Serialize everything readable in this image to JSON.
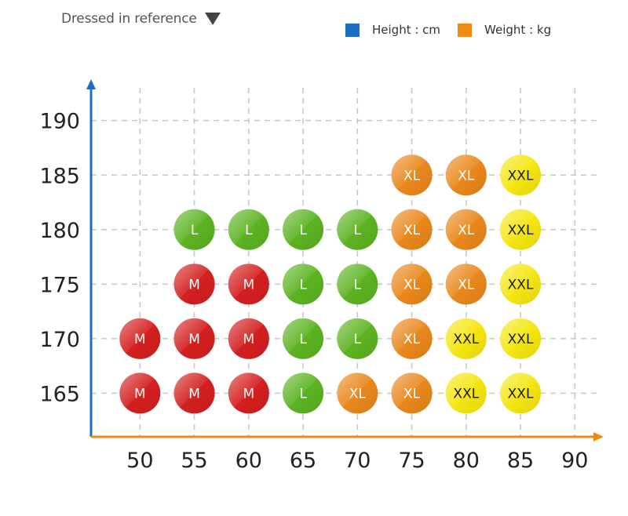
{
  "header": {
    "title": "Dressed in reference",
    "arrow_icon": "triangle-down-icon"
  },
  "legend": [
    {
      "label": "Height : cm",
      "color": "#1a6fc4"
    },
    {
      "label": "Weight : kg",
      "color": "#f08a12"
    }
  ],
  "chart_data": {
    "type": "scatter",
    "title": "Dressed in reference",
    "x_ticks": [
      50,
      55,
      60,
      65,
      70,
      75,
      80,
      85,
      90
    ],
    "y_ticks": [
      165,
      170,
      175,
      180,
      185,
      190
    ],
    "xlim": [
      45.5,
      92
    ],
    "ylim": [
      161,
      193
    ],
    "grid": true,
    "legend_placement": "top-right",
    "size_colors": {
      "M": "#d41f1f",
      "L": "#5cb321",
      "XL": "#e9871b",
      "XXL": "#f5e60f"
    },
    "axis_color": "#1a6fc4",
    "x_axis_color": "#f08a12",
    "points": [
      {
        "x": 50,
        "y": 165,
        "size": "M"
      },
      {
        "x": 55,
        "y": 165,
        "size": "M"
      },
      {
        "x": 60,
        "y": 165,
        "size": "M"
      },
      {
        "x": 65,
        "y": 165,
        "size": "L"
      },
      {
        "x": 70,
        "y": 165,
        "size": "XL"
      },
      {
        "x": 75,
        "y": 165,
        "size": "XL"
      },
      {
        "x": 80,
        "y": 165,
        "size": "XXL"
      },
      {
        "x": 85,
        "y": 165,
        "size": "XXL"
      },
      {
        "x": 50,
        "y": 170,
        "size": "M"
      },
      {
        "x": 55,
        "y": 170,
        "size": "M"
      },
      {
        "x": 60,
        "y": 170,
        "size": "M"
      },
      {
        "x": 65,
        "y": 170,
        "size": "L"
      },
      {
        "x": 70,
        "y": 170,
        "size": "L"
      },
      {
        "x": 75,
        "y": 170,
        "size": "XL"
      },
      {
        "x": 80,
        "y": 170,
        "size": "XXL"
      },
      {
        "x": 85,
        "y": 170,
        "size": "XXL"
      },
      {
        "x": 55,
        "y": 175,
        "size": "M"
      },
      {
        "x": 60,
        "y": 175,
        "size": "M"
      },
      {
        "x": 65,
        "y": 175,
        "size": "L"
      },
      {
        "x": 70,
        "y": 175,
        "size": "L"
      },
      {
        "x": 75,
        "y": 175,
        "size": "XL"
      },
      {
        "x": 80,
        "y": 175,
        "size": "XL"
      },
      {
        "x": 85,
        "y": 175,
        "size": "XXL"
      },
      {
        "x": 55,
        "y": 180,
        "size": "L"
      },
      {
        "x": 60,
        "y": 180,
        "size": "L"
      },
      {
        "x": 65,
        "y": 180,
        "size": "L"
      },
      {
        "x": 70,
        "y": 180,
        "size": "L"
      },
      {
        "x": 75,
        "y": 180,
        "size": "XL"
      },
      {
        "x": 80,
        "y": 180,
        "size": "XL"
      },
      {
        "x": 85,
        "y": 180,
        "size": "XXL"
      },
      {
        "x": 75,
        "y": 185,
        "size": "XL"
      },
      {
        "x": 80,
        "y": 185,
        "size": "XL"
      },
      {
        "x": 85,
        "y": 185,
        "size": "XXL"
      }
    ]
  }
}
